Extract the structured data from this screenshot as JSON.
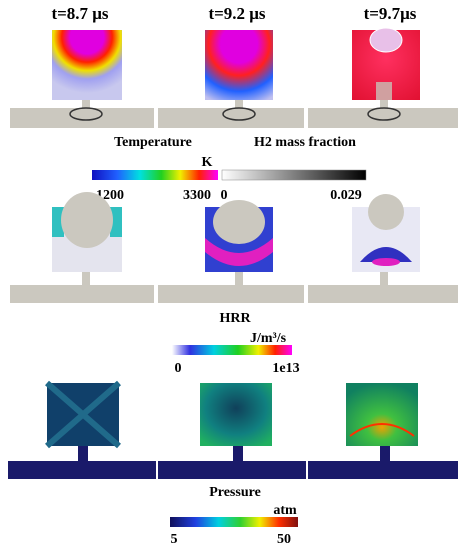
{
  "columns": [
    "t=8.7 μs",
    "t=9.2 μs",
    "t=9.7μs"
  ],
  "colorbars": [
    {
      "title": "Temperature",
      "unit": "K",
      "min": "1200",
      "max": "3300"
    },
    {
      "title": "H2 mass fraction",
      "min": "0",
      "max": "0.029"
    },
    {
      "title": "HRR",
      "unit": "J/m³/s",
      "min": "0",
      "max": "1e13"
    },
    {
      "title": "Pressure",
      "unit": "atm",
      "min": "5",
      "max": "50"
    }
  ]
}
